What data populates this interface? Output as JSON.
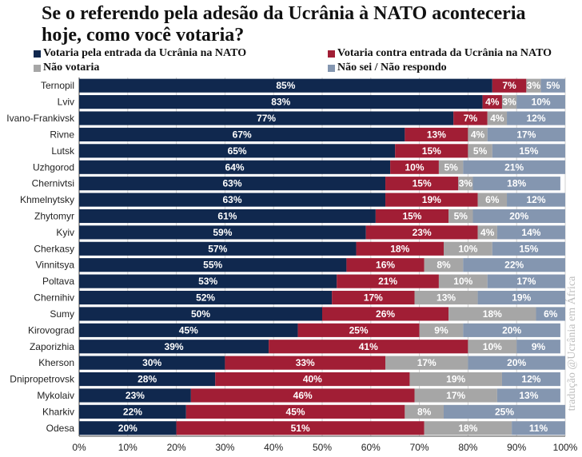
{
  "title": "Se o referendo pela adesão da Ucrânia à NATO aconteceria hoje, como você votaria?",
  "watermark": "tradução @Ucrânia em África",
  "chart_data": {
    "type": "bar",
    "orientation": "horizontal",
    "stacked": true,
    "title": "Se o referendo pela adesão da Ucrânia à NATO aconteceria hoje, como você votaria?",
    "categories": [
      "Ternopil",
      "Lviv",
      "Ivano-Frankivsk",
      "Rivne",
      "Lutsk",
      "Uzhgorod",
      "Chernivtsi",
      "Khmelnytsky",
      "Zhytomyr",
      "Kyiv",
      "Cherkasy",
      "Vinnitsya",
      "Poltava",
      "Chernihiv",
      "Sumy",
      "Kirovograd",
      "Zaporizhia",
      "Kherson",
      "Dnipropetrovsk",
      "Mykolaiv",
      "Kharkiv",
      "Odesa"
    ],
    "series": [
      {
        "name": "Votaria pela entrada da Ucrânia na NATO",
        "color": "#10284e",
        "label_color": "#ffffff",
        "values": [
          85,
          83,
          77,
          67,
          65,
          64,
          63,
          63,
          61,
          59,
          57,
          55,
          53,
          52,
          50,
          45,
          39,
          30,
          28,
          23,
          22,
          20
        ],
        "labels": [
          "85%",
          "83%",
          "77%",
          "67%",
          "65%",
          "64%",
          "63%",
          "63%",
          "61%",
          "59%",
          "57%",
          "55%",
          "53%",
          "52%",
          "50%",
          "45%",
          "39%",
          "30%",
          "28%",
          "23%",
          "22%",
          "20%"
        ]
      },
      {
        "name": "Votaria contra entrada da Ucrânia na NATO",
        "color": "#a11e35",
        "label_color": "#ffffff",
        "values": [
          7,
          4,
          7,
          13,
          15,
          10,
          15,
          19,
          15,
          23,
          18,
          16,
          21,
          17,
          26,
          25,
          41,
          33,
          40,
          46,
          45,
          51
        ],
        "labels": [
          "7%",
          "4%",
          "7%",
          "13%",
          "15%",
          "10%",
          "15%",
          "19%",
          "15%",
          "23%",
          "18%",
          "16%",
          "21%",
          "17%",
          "26%",
          "25%",
          "41%",
          "33%",
          "40%",
          "46%",
          "45%",
          "51%"
        ]
      },
      {
        "name": "Não votaria",
        "color": "#a6a6a6",
        "label_color": "#ffffff",
        "values": [
          3,
          3,
          4,
          4,
          5,
          5,
          3,
          6,
          5,
          4,
          10,
          8,
          10,
          13,
          18,
          9,
          10,
          17,
          19,
          17,
          8,
          18
        ],
        "labels": [
          "3%",
          "3%",
          "4%",
          "4%",
          "5%",
          "5%",
          "3%",
          "6%",
          "5%",
          "4%",
          "10%",
          "8%",
          "10%",
          "13%",
          "18%",
          "9%",
          "10%",
          "17%",
          "19%",
          "17%",
          "8%",
          "18%"
        ]
      },
      {
        "name": "Não sei / Não respondo",
        "color": "#8496b0",
        "label_color": "#ffffff",
        "values": [
          5,
          10,
          12,
          17,
          15,
          21,
          18,
          12,
          20,
          14,
          15,
          22,
          17,
          19,
          6,
          20,
          9,
          20,
          12,
          13,
          25,
          11
        ],
        "labels": [
          "5%",
          "10%",
          "12%",
          "17%",
          "15%",
          "21%",
          "18%",
          "12%",
          "20%",
          "14%",
          "15%",
          "22%",
          "17%",
          "19%",
          "6%",
          "20%",
          "9%",
          "20%",
          "12%",
          "13%",
          "25%",
          "11%"
        ]
      }
    ],
    "xlim": [
      0,
      100
    ],
    "x_ticks": [
      "0%",
      "10%",
      "20%",
      "30%",
      "40%",
      "50%",
      "60%",
      "70%",
      "80%",
      "90%",
      "100%"
    ],
    "grid": "vertical",
    "legend_position": "top"
  }
}
